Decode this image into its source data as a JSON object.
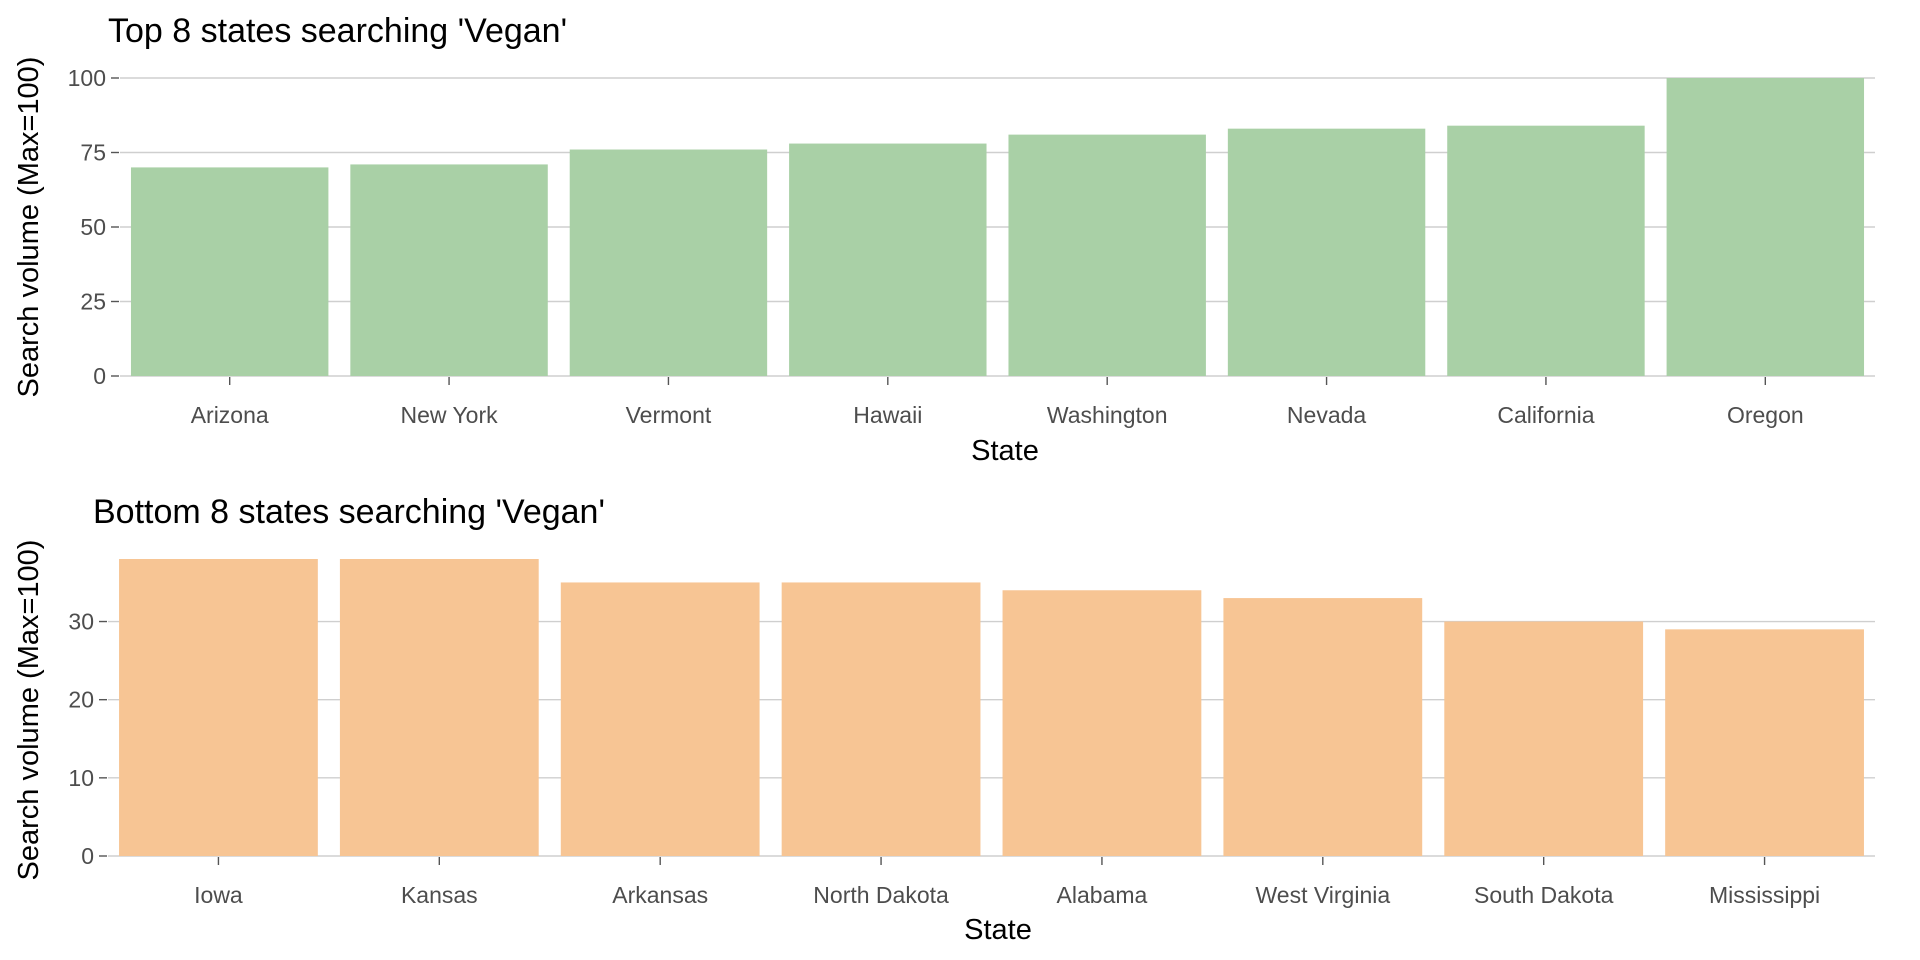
{
  "chart_data": [
    {
      "type": "bar",
      "title": "Top 8 states searching 'Vegan'",
      "xlabel": "State",
      "ylabel": "Search volume (Max=100)",
      "categories": [
        "Arizona",
        "New York",
        "Vermont",
        "Hawaii",
        "Washington",
        "Nevada",
        "California",
        "Oregon"
      ],
      "values": [
        70,
        71,
        76,
        78,
        81,
        83,
        84,
        100
      ],
      "ylim": [
        0,
        100
      ],
      "yticks": [
        0,
        25,
        50,
        75,
        100
      ],
      "grid": true,
      "legend": "none",
      "bar_color": "#a9d0a6"
    },
    {
      "type": "bar",
      "title": "Bottom 8 states searching 'Vegan'",
      "xlabel": "State",
      "ylabel": "Search volume (Max=100)",
      "categories": [
        "Iowa",
        "Kansas",
        "Arkansas",
        "North Dakota",
        "Alabama",
        "West Virginia",
        "South Dakota",
        "Mississippi"
      ],
      "values": [
        38,
        38,
        35,
        35,
        34,
        33,
        30,
        29
      ],
      "ylim": [
        0,
        38
      ],
      "yticks": [
        0,
        10,
        20,
        30
      ],
      "grid": true,
      "legend": "none",
      "bar_color": "#f7c594"
    }
  ]
}
